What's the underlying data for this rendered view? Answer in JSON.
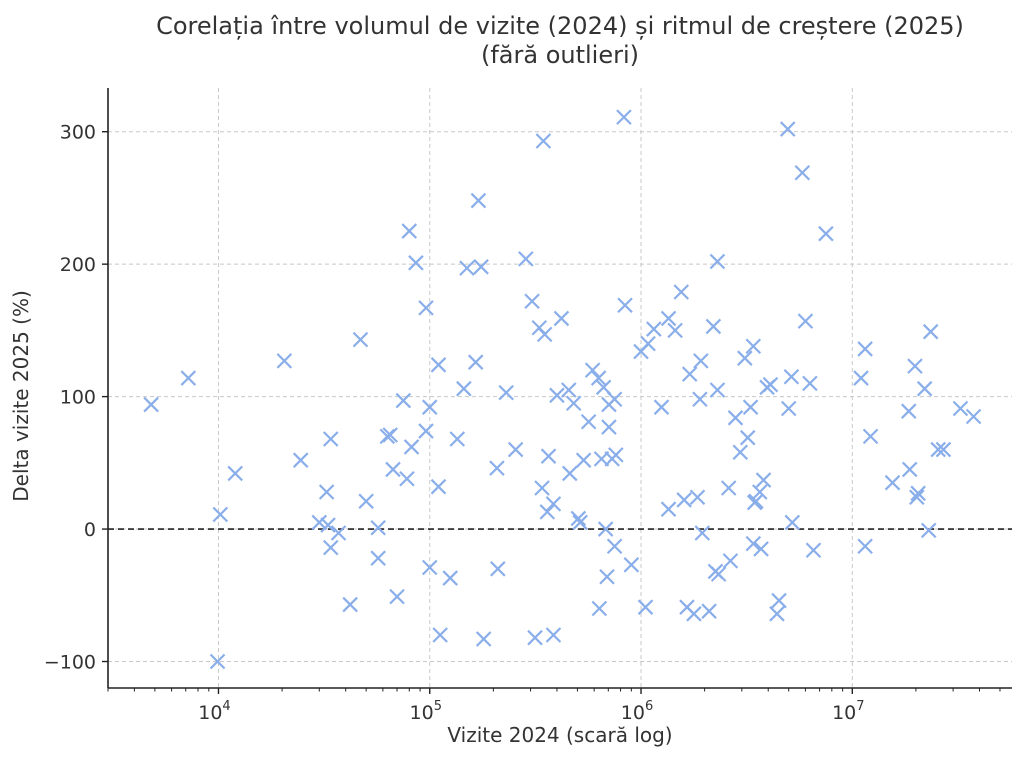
{
  "chart_data": {
    "type": "scatter",
    "title_lines": [
      "Corelația între volumul de vizite (2024) și ritmul de creștere (2025)",
      "(fără outlieri)"
    ],
    "xlabel": "Vizite 2024 (scară log)",
    "ylabel": "Delta vizite 2025 (%)",
    "x_scale": "log",
    "xlim": [
      3000,
      57000000
    ],
    "ylim": [
      -120,
      333
    ],
    "x_ticks": [
      {
        "value": 10000,
        "base": "10",
        "exp": "4"
      },
      {
        "value": 100000,
        "base": "10",
        "exp": "5"
      },
      {
        "value": 1000000,
        "base": "10",
        "exp": "6"
      },
      {
        "value": 10000000,
        "base": "10",
        "exp": "7"
      }
    ],
    "y_ticks": [
      {
        "value": -100,
        "label": "−100"
      },
      {
        "value": 0,
        "label": "0"
      },
      {
        "value": 100,
        "label": "100"
      },
      {
        "value": 200,
        "label": "200"
      },
      {
        "value": 300,
        "label": "300"
      }
    ],
    "grid": true,
    "reference_line_y": 0,
    "marker": "x",
    "color": "#8aaeea",
    "points": [
      [
        4800,
        94
      ],
      [
        7200,
        114
      ],
      [
        10200,
        11
      ],
      [
        9900,
        -100
      ],
      [
        12000,
        42
      ],
      [
        20500,
        127
      ],
      [
        24500,
        52
      ],
      [
        30000,
        5
      ],
      [
        32500,
        28
      ],
      [
        34000,
        68
      ],
      [
        34000,
        -14
      ],
      [
        33000,
        3
      ],
      [
        37000,
        -3
      ],
      [
        42000,
        -57
      ],
      [
        47000,
        143
      ],
      [
        50000,
        21
      ],
      [
        57000,
        1
      ],
      [
        57000,
        -22
      ],
      [
        63000,
        70
      ],
      [
        65000,
        71
      ],
      [
        67000,
        45
      ],
      [
        70000,
        -51
      ],
      [
        75000,
        97
      ],
      [
        78000,
        38
      ],
      [
        82000,
        62
      ],
      [
        80000,
        225
      ],
      [
        86000,
        201
      ],
      [
        96000,
        167
      ],
      [
        96000,
        74
      ],
      [
        100000,
        92
      ],
      [
        100000,
        -29
      ],
      [
        110000,
        124
      ],
      [
        110000,
        32
      ],
      [
        112000,
        -80
      ],
      [
        125000,
        -37
      ],
      [
        135000,
        68
      ],
      [
        145000,
        106
      ],
      [
        150000,
        197
      ],
      [
        165000,
        126
      ],
      [
        170000,
        248
      ],
      [
        175000,
        198
      ],
      [
        180000,
        -83
      ],
      [
        208000,
        46
      ],
      [
        210000,
        -30
      ],
      [
        230000,
        103
      ],
      [
        255000,
        60
      ],
      [
        285000,
        204
      ],
      [
        305000,
        172
      ],
      [
        315000,
        -82
      ],
      [
        330000,
        152
      ],
      [
        340000,
        31
      ],
      [
        345000,
        293
      ],
      [
        350000,
        147
      ],
      [
        360000,
        13
      ],
      [
        365000,
        55
      ],
      [
        385000,
        19
      ],
      [
        385000,
        -80
      ],
      [
        400000,
        101
      ],
      [
        420000,
        159
      ],
      [
        455000,
        105
      ],
      [
        460000,
        42
      ],
      [
        480000,
        95
      ],
      [
        505000,
        8
      ],
      [
        515000,
        5
      ],
      [
        535000,
        52
      ],
      [
        565000,
        81
      ],
      [
        590000,
        120
      ],
      [
        630000,
        114
      ],
      [
        635000,
        -60
      ],
      [
        650000,
        53
      ],
      [
        665000,
        107
      ],
      [
        680000,
        0
      ],
      [
        690000,
        -36
      ],
      [
        705000,
        77
      ],
      [
        705000,
        94
      ],
      [
        730000,
        53
      ],
      [
        760000,
        56
      ],
      [
        750000,
        98
      ],
      [
        750000,
        -13
      ],
      [
        830000,
        311
      ],
      [
        840000,
        169
      ],
      [
        900000,
        -27
      ],
      [
        1000000,
        134
      ],
      [
        1050000,
        -59
      ],
      [
        1080000,
        140
      ],
      [
        1150000,
        151
      ],
      [
        1250000,
        92
      ],
      [
        1350000,
        15
      ],
      [
        1350000,
        159
      ],
      [
        1450000,
        150
      ],
      [
        1550000,
        179
      ],
      [
        1600000,
        22
      ],
      [
        1650000,
        -59
      ],
      [
        1700000,
        117
      ],
      [
        1780000,
        -64
      ],
      [
        1850000,
        24
      ],
      [
        1900000,
        98
      ],
      [
        1920000,
        127
      ],
      [
        1950000,
        -3
      ],
      [
        2100000,
        -62
      ],
      [
        2200000,
        153
      ],
      [
        2250000,
        -32
      ],
      [
        2300000,
        105
      ],
      [
        2300000,
        202
      ],
      [
        2330000,
        -34
      ],
      [
        2600000,
        31
      ],
      [
        2650000,
        -24
      ],
      [
        2800000,
        84
      ],
      [
        2950000,
        58
      ],
      [
        3100000,
        129
      ],
      [
        3200000,
        69
      ],
      [
        3300000,
        92
      ],
      [
        3400000,
        138
      ],
      [
        3400000,
        -11
      ],
      [
        3450000,
        20
      ],
      [
        3500000,
        21
      ],
      [
        3650000,
        28
      ],
      [
        3700000,
        -15
      ],
      [
        3800000,
        37
      ],
      [
        3950000,
        107
      ],
      [
        4100000,
        109
      ],
      [
        4400000,
        -64
      ],
      [
        4500000,
        -54
      ],
      [
        4950000,
        302
      ],
      [
        5000000,
        91
      ],
      [
        5150000,
        115
      ],
      [
        5200000,
        5
      ],
      [
        5800000,
        269
      ],
      [
        6000000,
        157
      ],
      [
        6300000,
        110
      ],
      [
        6550000,
        -16
      ],
      [
        7500000,
        223
      ],
      [
        11000000,
        114
      ],
      [
        11500000,
        136
      ],
      [
        11500000,
        -13
      ],
      [
        12200000,
        70
      ],
      [
        15500000,
        35
      ],
      [
        18500000,
        89
      ],
      [
        18700000,
        45
      ],
      [
        19800000,
        123
      ],
      [
        20500000,
        27
      ],
      [
        20200000,
        24
      ],
      [
        22000000,
        106
      ],
      [
        23000000,
        -1
      ],
      [
        23500000,
        149
      ],
      [
        25500000,
        60
      ],
      [
        27000000,
        60
      ],
      [
        32500000,
        91
      ],
      [
        37500000,
        85
      ]
    ]
  }
}
